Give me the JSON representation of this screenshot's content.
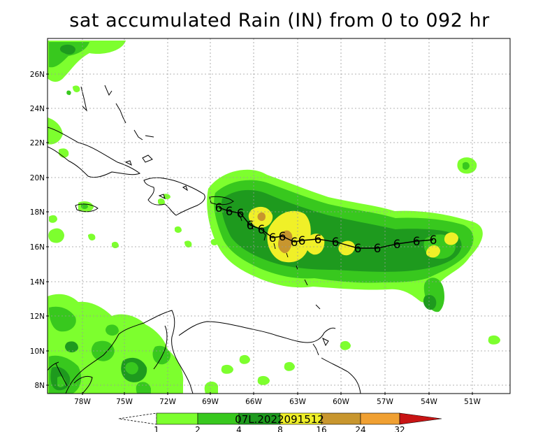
{
  "map": {
    "title": "sat accumulated Rain (IN) from 0 to 092 hr",
    "lat_labels": [
      "26N",
      "24N",
      "22N",
      "20N",
      "18N",
      "16N",
      "14N",
      "12N",
      "10N",
      "8N"
    ],
    "lon_labels": [
      "78W",
      "75W",
      "72W",
      "69W",
      "66W",
      "63W",
      "60W",
      "57W",
      "54W",
      "51W"
    ],
    "storm_id": "07L.2022091512",
    "storm_symbol": "6"
  },
  "colorbar": {
    "levels": [
      "1",
      "2",
      "4",
      "8",
      "16",
      "24",
      "32"
    ],
    "colors": {
      "c1": "#7dff2e",
      "c2": "#38c81e",
      "c3": "#1e9a1e",
      "c4": "#f0f028",
      "c5": "#c8962e",
      "c6": "#f0a032",
      "c7": "#c81414"
    }
  }
}
